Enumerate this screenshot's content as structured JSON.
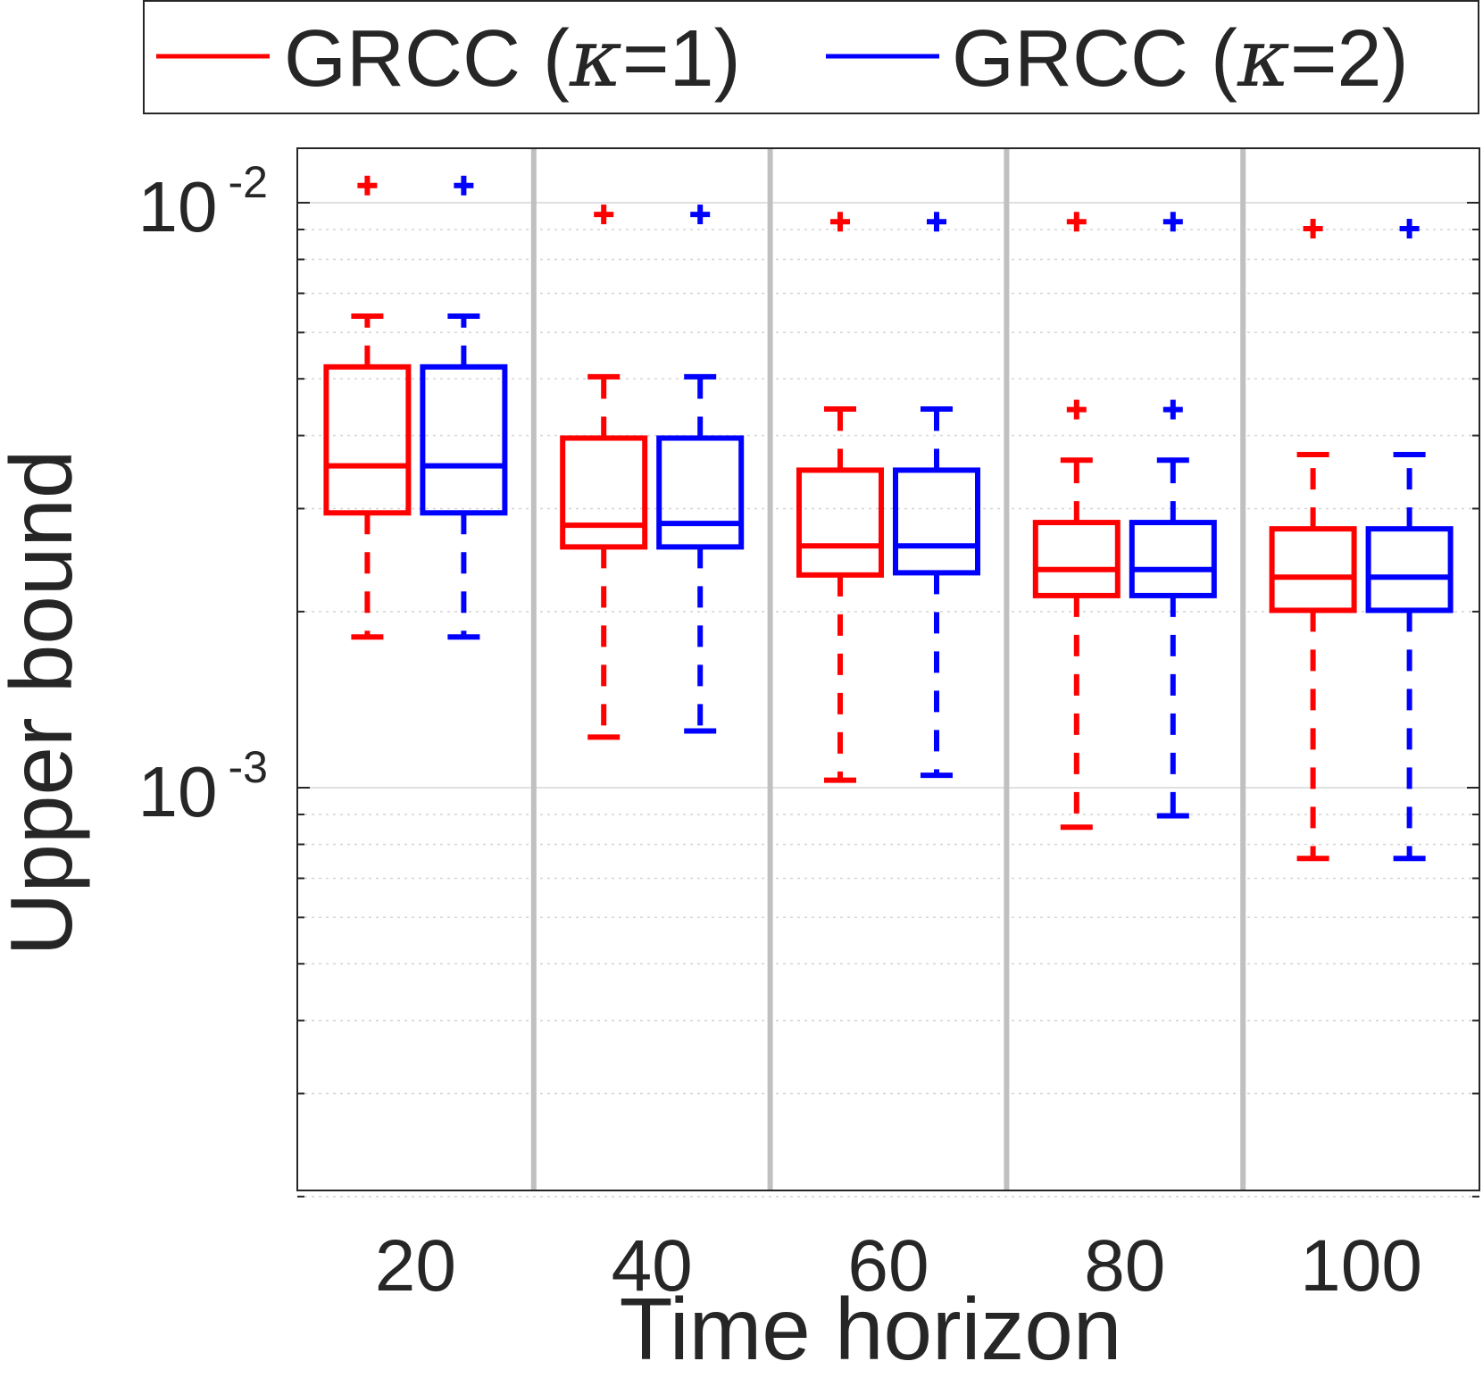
{
  "chart_data": {
    "type": "boxplot",
    "title": "",
    "xlabel": "Time horizon",
    "ylabel": "Upper bound",
    "yscale": "log",
    "ylim": [
      0.00019,
      0.0114
    ],
    "y_ticks": [
      {
        "value": 0.01,
        "base": "10",
        "exponent": "-2"
      },
      {
        "value": 0.001,
        "base": "10",
        "exponent": "-3"
      }
    ],
    "categories": [
      "20",
      "40",
      "60",
      "80",
      "100"
    ],
    "grid": true,
    "legend_position": "top, outside plot",
    "legend": [
      {
        "prefix": "GRCC (",
        "symbol": "κ",
        "suffix": "=1)",
        "color": "#ff0000"
      },
      {
        "prefix": "GRCC (",
        "symbol": "κ",
        "suffix": "=2)",
        "color": "#0000ff"
      }
    ],
    "series": [
      {
        "name": "GRCC (κ=1)",
        "color": "#ff0000",
        "boxes": [
          {
            "category": "20",
            "whisker_low": 0.00181,
            "q1": 0.00295,
            "median": 0.00355,
            "q3": 0.00524,
            "whisker_high": 0.0064,
            "outliers": [
              0.0107
            ]
          },
          {
            "category": "40",
            "whisker_low": 0.00122,
            "q1": 0.00258,
            "median": 0.00281,
            "q3": 0.00396,
            "whisker_high": 0.00504,
            "outliers": [
              0.00955
            ]
          },
          {
            "category": "60",
            "whisker_low": 0.00103,
            "q1": 0.00231,
            "median": 0.00259,
            "q3": 0.00349,
            "whisker_high": 0.00444,
            "outliers": [
              0.00928
            ]
          },
          {
            "category": "80",
            "whisker_low": 0.000856,
            "q1": 0.00213,
            "median": 0.00236,
            "q3": 0.00284,
            "whisker_high": 0.00363,
            "outliers": [
              0.00928,
              0.00443
            ]
          },
          {
            "category": "100",
            "whisker_low": 0.000757,
            "q1": 0.00201,
            "median": 0.00229,
            "q3": 0.00277,
            "whisker_high": 0.00371,
            "outliers": [
              0.00903
            ]
          }
        ]
      },
      {
        "name": "GRCC (κ=2)",
        "color": "#0000ff",
        "boxes": [
          {
            "category": "20",
            "whisker_low": 0.00181,
            "q1": 0.00295,
            "median": 0.00355,
            "q3": 0.00524,
            "whisker_high": 0.0064,
            "outliers": [
              0.0107
            ]
          },
          {
            "category": "40",
            "whisker_low": 0.00125,
            "q1": 0.00258,
            "median": 0.00283,
            "q3": 0.00396,
            "whisker_high": 0.00504,
            "outliers": [
              0.00955
            ]
          },
          {
            "category": "60",
            "whisker_low": 0.00105,
            "q1": 0.00233,
            "median": 0.00259,
            "q3": 0.00349,
            "whisker_high": 0.00444,
            "outliers": [
              0.00928
            ]
          },
          {
            "category": "80",
            "whisker_low": 0.000895,
            "q1": 0.00213,
            "median": 0.00236,
            "q3": 0.00284,
            "whisker_high": 0.00363,
            "outliers": [
              0.00928,
              0.00443
            ]
          },
          {
            "category": "100",
            "whisker_low": 0.000757,
            "q1": 0.00201,
            "median": 0.00229,
            "q3": 0.00277,
            "whisker_high": 0.00371,
            "outliers": [
              0.00903
            ]
          }
        ]
      }
    ]
  }
}
